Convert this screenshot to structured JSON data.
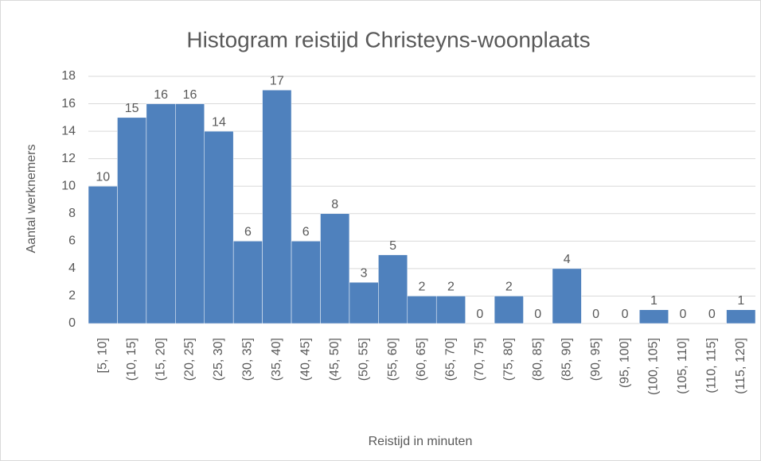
{
  "chart_data": {
    "type": "bar",
    "title": "Histogram reistijd Christeyns-woonplaats",
    "x_label": "Reistijd in minuten",
    "y_label": "Aantal werknemers",
    "categories": [
      "[5, 10]",
      "(10, 15]",
      "(15, 20]",
      "(20, 25]",
      "(25, 30]",
      "(30, 35]",
      "(35, 40]",
      "(40, 45]",
      "(45, 50]",
      "(50, 55]",
      "(55, 60]",
      "(60, 65]",
      "(65, 70]",
      "(70, 75]",
      "(75, 80]",
      "(80, 85]",
      "(85, 90]",
      "(90, 95]",
      "(95, 100]",
      "(100, 105]",
      "(105, 110]",
      "(110, 115]",
      "(115, 120]"
    ],
    "values": [
      10,
      15,
      16,
      16,
      14,
      6,
      17,
      6,
      8,
      3,
      5,
      2,
      2,
      0,
      2,
      0,
      4,
      0,
      0,
      1,
      0,
      0,
      1
    ],
    "color": "#4f81bd",
    "ylim": [
      0,
      18
    ],
    "yticks": [
      0,
      2,
      4,
      6,
      8,
      10,
      12,
      14,
      16,
      18
    ],
    "grid": true
  }
}
